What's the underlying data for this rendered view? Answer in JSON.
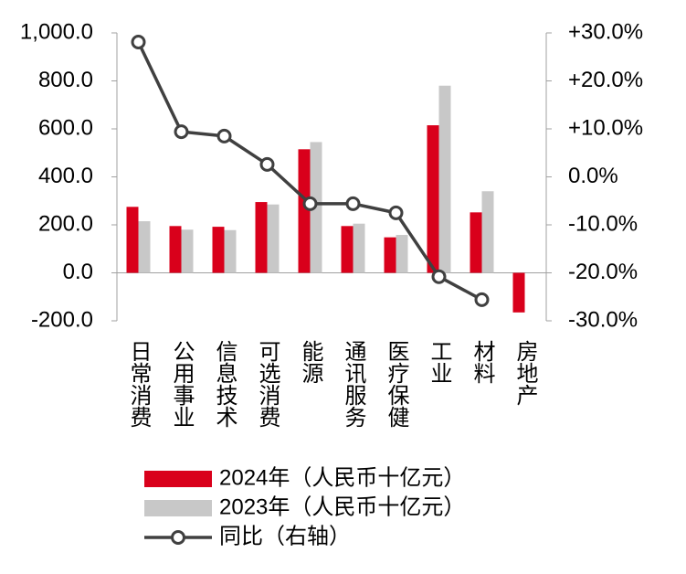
{
  "chart_data": {
    "type": "bar_line",
    "categories": [
      "日常消费",
      "公用事业",
      "信息技术",
      "可选消费",
      "能源",
      "通讯服务",
      "医疗保健",
      "工业",
      "材料",
      "房地产"
    ],
    "series": [
      {
        "name": "2024年（人民币十亿元）",
        "type": "bar",
        "color": "#d9001b",
        "values": [
          275,
          195,
          192,
          295,
          515,
          195,
          148,
          615,
          252,
          -165
        ]
      },
      {
        "name": "2023年（人民币十亿元）",
        "type": "bar",
        "color": "#c8c8c8",
        "values": [
          215,
          180,
          178,
          285,
          545,
          205,
          158,
          780,
          340,
          null
        ]
      },
      {
        "name": "同比（右轴）",
        "type": "line",
        "axis": "y2",
        "color": "#404040",
        "values": [
          28.1,
          9.4,
          8.5,
          2.6,
          -5.6,
          -5.6,
          -7.5,
          -20.8,
          -25.6,
          null
        ]
      }
    ],
    "ylim": [
      -200,
      1000
    ],
    "yticks": [
      {
        "value": -200,
        "label": "-200.0"
      },
      {
        "value": 0,
        "label": "0.0"
      },
      {
        "value": 200,
        "label": "200.0"
      },
      {
        "value": 400,
        "label": "400.0"
      },
      {
        "value": 600,
        "label": "600.0"
      },
      {
        "value": 800,
        "label": "800.0"
      },
      {
        "value": 1000,
        "label": "1,000.0"
      }
    ],
    "y2lim": [
      -30,
      30
    ],
    "y2ticks": [
      {
        "value": -30,
        "label": "-30.0%"
      },
      {
        "value": -20,
        "label": "-20.0%"
      },
      {
        "value": -10,
        "label": "-10.0%"
      },
      {
        "value": 0,
        "label": "0.0%"
      },
      {
        "value": 10,
        "label": "+10.0%"
      },
      {
        "value": 20,
        "label": "+20.0%"
      },
      {
        "value": 30,
        "label": "+30.0%"
      }
    ]
  }
}
